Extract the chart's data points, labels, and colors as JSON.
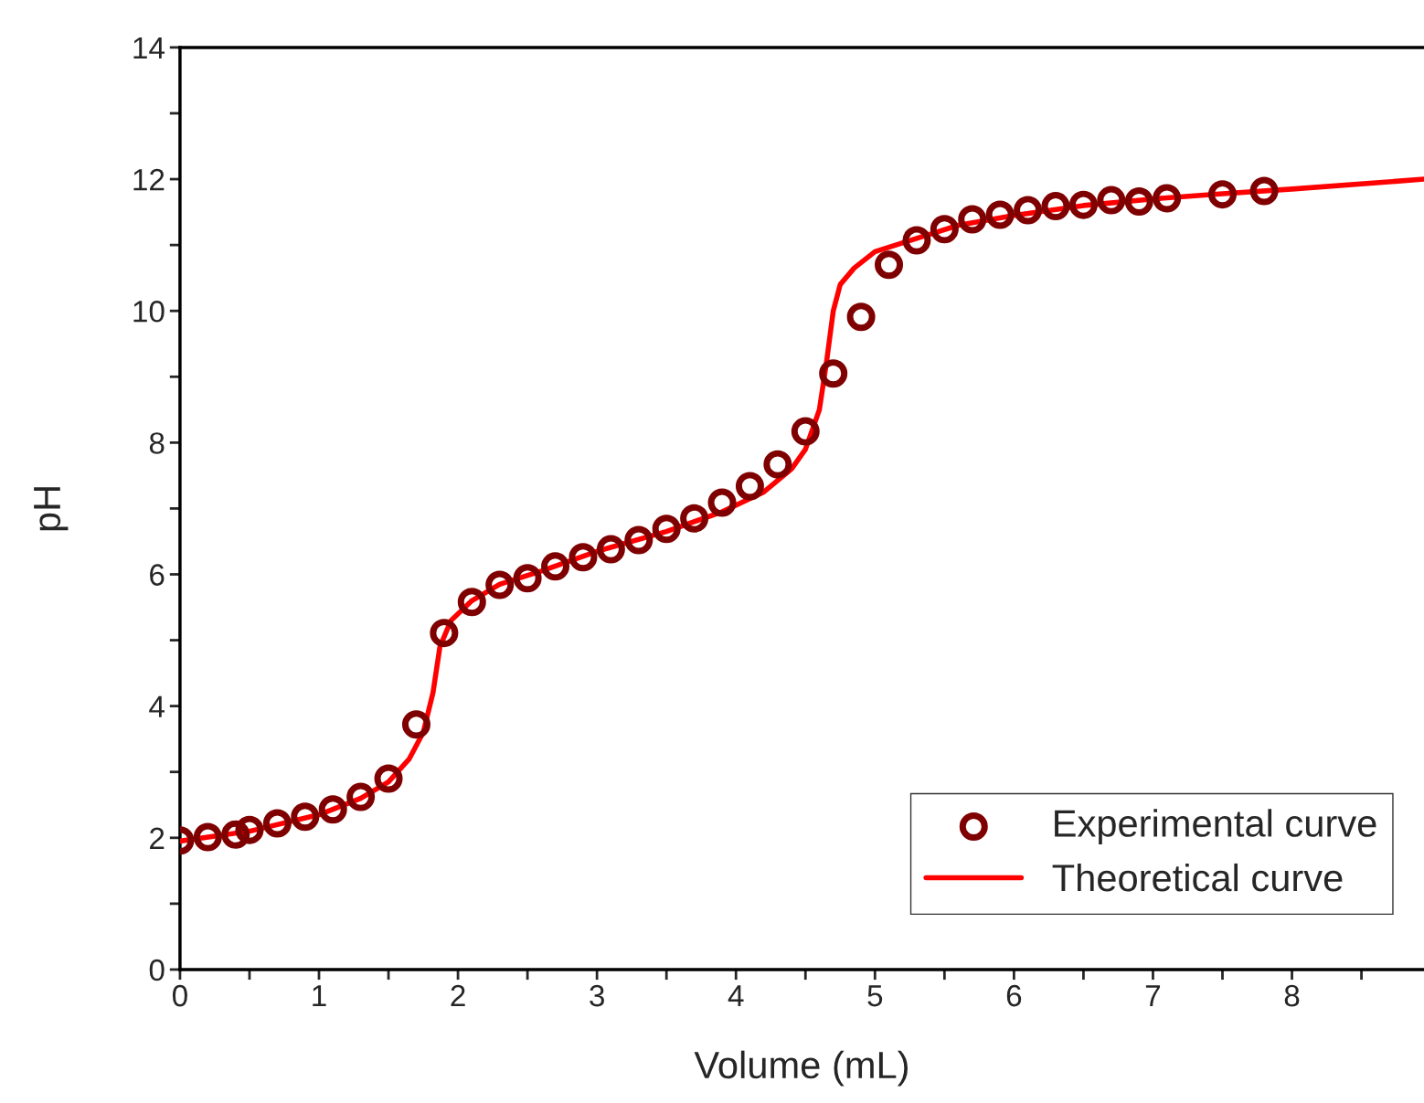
{
  "chart_data": {
    "type": "scatter",
    "xlabel": "Volume (mL)",
    "ylabel": "pH",
    "xlim": [
      0,
      8.95
    ],
    "ylim": [
      0,
      14
    ],
    "xticks": [
      0,
      {
        "value": 0.5,
        "label": null
      },
      1,
      {
        "value": 1.5,
        "label": null
      },
      2,
      {
        "value": 2.5,
        "label": null
      },
      3,
      {
        "value": 3.5,
        "label": null
      },
      4,
      {
        "value": 4.5,
        "label": null
      },
      5,
      {
        "value": 5.5,
        "label": null
      },
      6,
      {
        "value": 6.5,
        "label": null
      },
      7,
      {
        "value": 7.5,
        "label": null
      },
      8,
      {
        "value": 8.5,
        "label": null
      }
    ],
    "yticks": [
      0,
      {
        "value": 1,
        "label": null
      },
      2,
      {
        "value": 3,
        "label": null
      },
      4,
      {
        "value": 5,
        "label": null
      },
      6,
      {
        "value": 7,
        "label": null
      },
      8,
      {
        "value": 9,
        "label": null
      },
      10,
      {
        "value": 11,
        "label": null
      },
      12,
      {
        "value": 13,
        "label": null
      },
      14
    ],
    "grid": false,
    "legend": "bottom right",
    "series": [
      {
        "name": "Experimental curve",
        "marker": "circle",
        "color": "#7f0000",
        "x": [
          0,
          0.2,
          0.4,
          0.5,
          0.7,
          0.9,
          1.1,
          1.3,
          1.5,
          1.7,
          1.9,
          2.1,
          2.3,
          2.5,
          2.7,
          2.9,
          3.1,
          3.3,
          3.5,
          3.7,
          3.9,
          4.1,
          4.3,
          4.5,
          4.7,
          4.9,
          5.1,
          5.3,
          5.5,
          5.7,
          5.9,
          6.1,
          6.3,
          6.5,
          6.7,
          6.9,
          7.1,
          7.5,
          7.8
        ],
        "values": [
          1.96,
          2.01,
          2.05,
          2.12,
          2.22,
          2.32,
          2.43,
          2.62,
          2.9,
          3.72,
          5.11,
          5.58,
          5.84,
          5.94,
          6.12,
          6.26,
          6.38,
          6.52,
          6.69,
          6.85,
          7.09,
          7.34,
          7.67,
          8.17,
          9.05,
          9.91,
          10.7,
          11.07,
          11.24,
          11.39,
          11.46,
          11.53,
          11.59,
          11.61,
          11.68,
          11.66,
          11.71,
          11.77,
          11.82
        ]
      },
      {
        "name": "Theoretical curve",
        "type": "line",
        "marker": "none",
        "line_style": "solid",
        "color": "#ff0000",
        "x": [
          0,
          0.5,
          1.0,
          1.3,
          1.5,
          1.65,
          1.75,
          1.82,
          1.87,
          1.95,
          2.1,
          2.3,
          2.6,
          3.0,
          3.5,
          3.9,
          4.2,
          4.4,
          4.5,
          4.6,
          4.65,
          4.7,
          4.75,
          4.85,
          5.0,
          5.3,
          5.6,
          6.0,
          6.5,
          7.0,
          7.5,
          8.0,
          8.95
        ],
        "values": [
          1.95,
          2.1,
          2.35,
          2.6,
          2.85,
          3.2,
          3.6,
          4.2,
          4.9,
          5.3,
          5.6,
          5.85,
          6.05,
          6.35,
          6.65,
          6.95,
          7.25,
          7.6,
          7.9,
          8.5,
          9.2,
          10.0,
          10.4,
          10.65,
          10.9,
          11.1,
          11.3,
          11.45,
          11.6,
          11.7,
          11.78,
          11.85,
          12.0
        ]
      }
    ]
  }
}
